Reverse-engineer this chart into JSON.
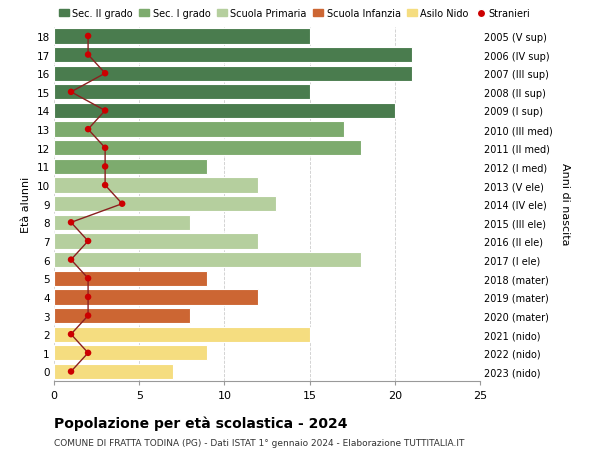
{
  "ages": [
    18,
    17,
    16,
    15,
    14,
    13,
    12,
    11,
    10,
    9,
    8,
    7,
    6,
    5,
    4,
    3,
    2,
    1,
    0
  ],
  "right_labels": [
    "2005 (V sup)",
    "2006 (IV sup)",
    "2007 (III sup)",
    "2008 (II sup)",
    "2009 (I sup)",
    "2010 (III med)",
    "2011 (II med)",
    "2012 (I med)",
    "2013 (V ele)",
    "2014 (IV ele)",
    "2015 (III ele)",
    "2016 (II ele)",
    "2017 (I ele)",
    "2018 (mater)",
    "2019 (mater)",
    "2020 (mater)",
    "2021 (nido)",
    "2022 (nido)",
    "2023 (nido)"
  ],
  "bar_values": [
    15,
    21,
    21,
    15,
    20,
    17,
    18,
    9,
    12,
    13,
    8,
    12,
    18,
    9,
    12,
    8,
    15,
    9,
    7
  ],
  "bar_colors": [
    "#4a7c4e",
    "#4a7c4e",
    "#4a7c4e",
    "#4a7c4e",
    "#4a7c4e",
    "#7dab6e",
    "#7dab6e",
    "#7dab6e",
    "#b5cf9e",
    "#b5cf9e",
    "#b5cf9e",
    "#b5cf9e",
    "#b5cf9e",
    "#cc6633",
    "#cc6633",
    "#cc6633",
    "#f5dd80",
    "#f5dd80",
    "#f5dd80"
  ],
  "stranieri_values": [
    2,
    2,
    3,
    1,
    3,
    2,
    3,
    3,
    3,
    4,
    1,
    2,
    1,
    2,
    2,
    2,
    1,
    2,
    1
  ],
  "legend_labels": [
    "Sec. II grado",
    "Sec. I grado",
    "Scuola Primaria",
    "Scuola Infanzia",
    "Asilo Nido",
    "Stranieri"
  ],
  "legend_colors": [
    "#4a7c4e",
    "#7dab6e",
    "#b5cf9e",
    "#cc6633",
    "#f5dd80",
    "#cc0000"
  ],
  "title": "Popolazione per età scolastica - 2024",
  "subtitle": "COMUNE DI FRATTA TODINA (PG) - Dati ISTAT 1° gennaio 2024 - Elaborazione TUTTITALIA.IT",
  "ylabel_left": "Età alunni",
  "ylabel_right": "Anni di nascita",
  "xlim": [
    0,
    25
  ],
  "ylim": [
    -0.5,
    18.5
  ],
  "bg_color": "#ffffff",
  "grid_color": "#cccccc",
  "stranieri_color": "#cc0000",
  "stranieri_line_color": "#8b2020"
}
